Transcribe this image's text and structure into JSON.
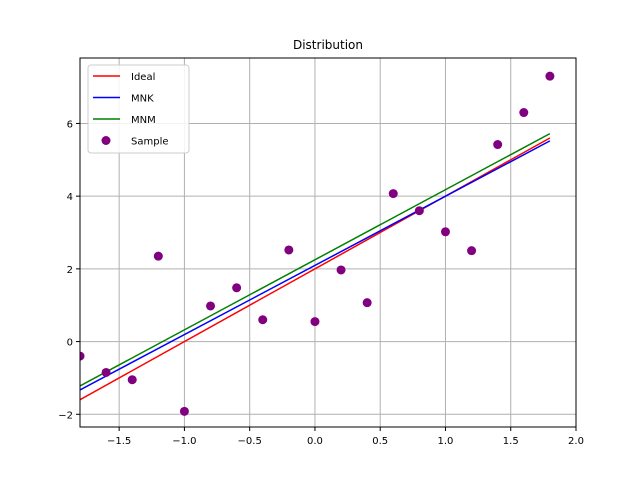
{
  "chart_data": {
    "type": "scatter",
    "title": "Distribution",
    "xlabel": "",
    "ylabel": "",
    "xlim": [
      -1.8,
      2.0
    ],
    "ylim": [
      -2.35,
      7.8
    ],
    "grid": true,
    "legend_position": "top-left",
    "xticks": [
      -1.5,
      -1.0,
      -0.5,
      0.0,
      0.5,
      1.0,
      1.5,
      2.0
    ],
    "xtick_labels": [
      "−1.5",
      "−1.0",
      "−0.5",
      "0.0",
      "0.5",
      "1.0",
      "1.5",
      "2.0"
    ],
    "yticks": [
      -2,
      0,
      2,
      4,
      6
    ],
    "ytick_labels": [
      "−2",
      "0",
      "2",
      "4",
      "6"
    ],
    "lines": [
      {
        "name": "Ideal",
        "color": "#ff0000",
        "x": [
          -1.8,
          1.8
        ],
        "y": [
          -1.6,
          5.6
        ]
      },
      {
        "name": "MNK",
        "color": "#0000ff",
        "x": [
          -1.8,
          1.8
        ],
        "y": [
          -1.33,
          5.52
        ]
      },
      {
        "name": "MNM",
        "color": "#008000",
        "x": [
          -1.8,
          1.8
        ],
        "y": [
          -1.22,
          5.72
        ]
      }
    ],
    "scatter": {
      "name": "Sample",
      "color": "#800080",
      "x": [
        -1.8,
        -1.6,
        -1.4,
        -1.2,
        -1.0,
        -0.8,
        -0.6,
        -0.4,
        -0.2,
        0.0,
        0.2,
        0.4,
        0.6,
        0.8,
        1.0,
        1.2,
        1.4,
        1.6,
        1.8
      ],
      "y": [
        -0.4,
        -0.85,
        -1.05,
        2.35,
        -1.92,
        0.98,
        1.48,
        0.6,
        2.52,
        0.55,
        1.97,
        1.07,
        4.07,
        3.6,
        3.02,
        2.5,
        5.42,
        6.3,
        7.3
      ]
    }
  }
}
